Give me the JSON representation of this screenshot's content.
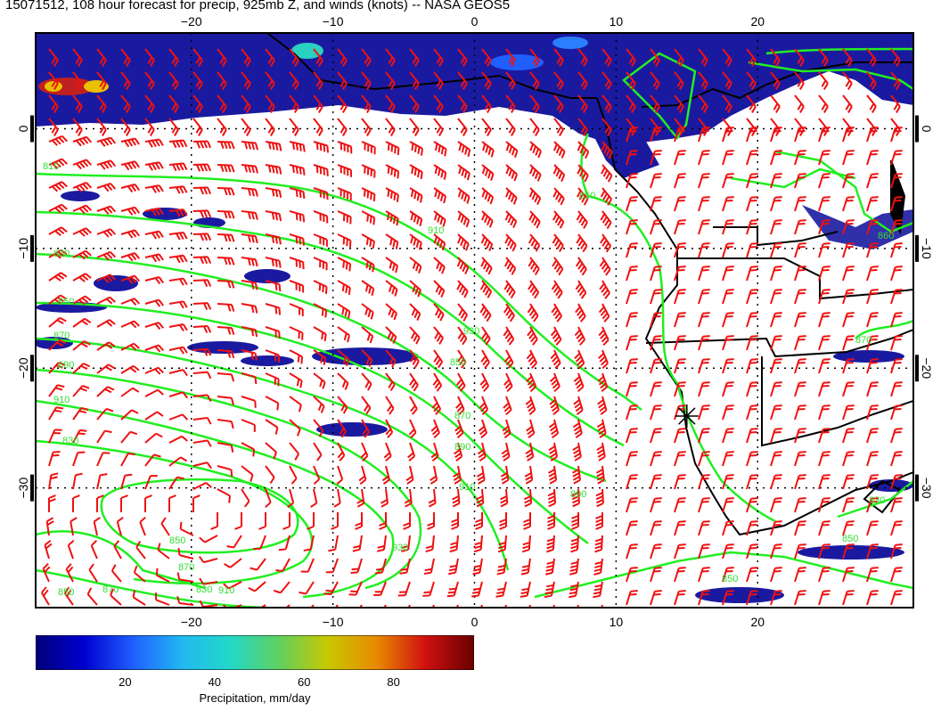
{
  "title": "15071512, 108 hour forecast for precip, 925mb Z, and winds (knots) -- NASA GEOS5",
  "map": {
    "lon_range": [
      -31,
      31
    ],
    "lat_range": [
      -40,
      8
    ],
    "lon_ticks": [
      -20,
      -10,
      0,
      10,
      20
    ],
    "lat_ticks": [
      0,
      -10,
      -20,
      -30
    ],
    "marker": {
      "lon": 15,
      "lat": -24
    }
  },
  "contour_labels": [
    "810",
    "910",
    "830",
    "850",
    "870",
    "890",
    "910",
    "930",
    "850",
    "870",
    "890",
    "910",
    "830",
    "850",
    "870",
    "830",
    "850",
    "870",
    "850",
    "870",
    "930",
    "910",
    "890",
    "850",
    "860",
    "850",
    "830"
  ],
  "colorbar": {
    "ticks": [
      "20",
      "40",
      "60",
      "80"
    ],
    "tick_values": [
      20,
      40,
      60,
      80
    ],
    "min": 0,
    "max": 98,
    "label": "Precipitation, mm/day",
    "colors": [
      "#00007a",
      "#0000d0",
      "#1f5fff",
      "#22b8f0",
      "#22d8c8",
      "#60d060",
      "#c8c800",
      "#e88a00",
      "#d01010",
      "#6a0000"
    ]
  },
  "colors": {
    "contours": "#22ee22",
    "wind_barbs": "#ee1111",
    "precip": "#1a1aa0",
    "coast": "#000000"
  }
}
